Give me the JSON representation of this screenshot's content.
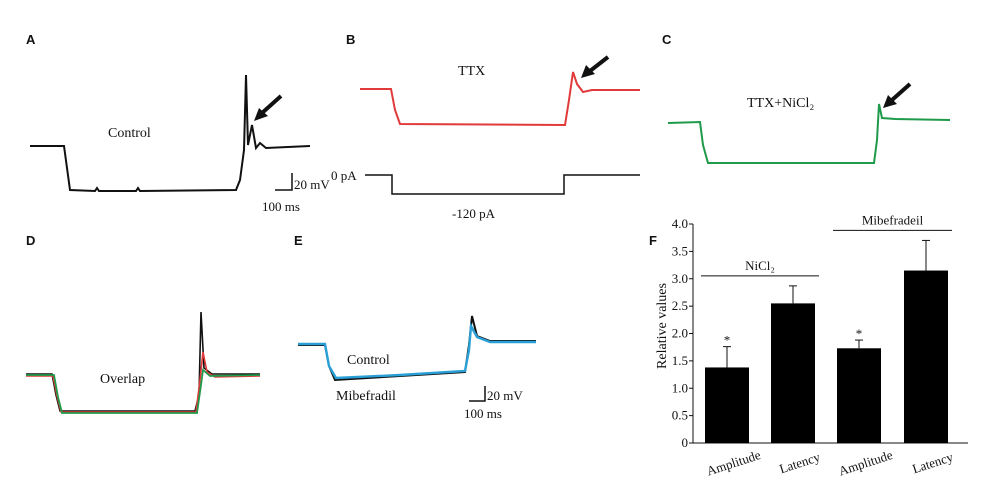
{
  "panels": {
    "A": {
      "letter": "A",
      "label": "Control",
      "scale_v": "20 mV",
      "scale_t": "100 ms"
    },
    "B": {
      "letter": "B",
      "label": "TTX",
      "step_zero": "0 pA",
      "step_value": "-120 pA"
    },
    "C": {
      "letter": "C",
      "label": "TTX+NiCl₂"
    },
    "D": {
      "letter": "D",
      "label": "Overlap"
    },
    "E": {
      "letter": "E",
      "label_control": "Control",
      "label_drug": "Mibefradil",
      "scale_v": "20 mV",
      "scale_t": "100 ms"
    },
    "F": {
      "letter": "F"
    }
  },
  "colors": {
    "control": "#111111",
    "ttx": "#e03a3a",
    "ttx_nicl2": "#1f9a4a",
    "mibefradil": "#2a9fd6",
    "bar": "#000000"
  },
  "chart_data": {
    "type": "bar",
    "categories": [
      "Amplitude",
      "Latency",
      "Amplitude",
      "Latency"
    ],
    "values": [
      1.38,
      2.55,
      1.73,
      3.15
    ],
    "errors": [
      0.38,
      0.32,
      0.15,
      0.55
    ],
    "significant": [
      "*",
      "",
      "*",
      ""
    ],
    "group_labels": [
      {
        "label": "NiCl₂",
        "categories": [
          0,
          1
        ]
      },
      {
        "label": "Mibefradeil",
        "categories": [
          2,
          3
        ]
      }
    ],
    "ylabel": "Relative values",
    "ylim": [
      0,
      4.0
    ],
    "yticks": [
      "0",
      "0.5",
      "1.0",
      "1.5",
      "2.0",
      "2.5",
      "3.0",
      "3.5",
      "4.0"
    ],
    "grid": false
  }
}
